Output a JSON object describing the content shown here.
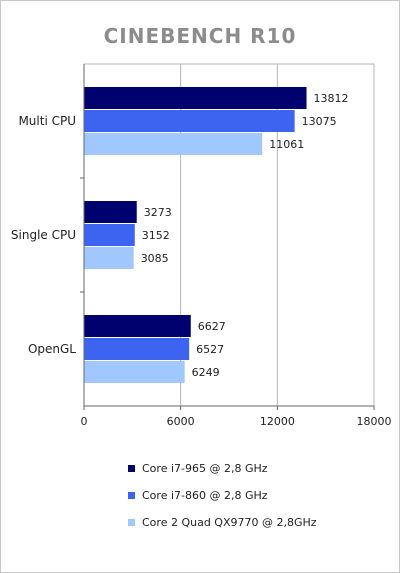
{
  "chart_data": {
    "type": "bar",
    "orientation": "horizontal",
    "title": "CINEBENCH R10",
    "categories": [
      "Multi CPU",
      "Single CPU",
      "OpenGL"
    ],
    "series": [
      {
        "name": "Core i7-965 @ 2,8 GHz",
        "color": "#00006e",
        "values": [
          13812,
          3273,
          6627
        ]
      },
      {
        "name": "Core i7-860 @ 2,8 GHz",
        "color": "#3c64f0",
        "values": [
          13075,
          3152,
          6527
        ]
      },
      {
        "name": "Core 2 Quad QX9770 @ 2,8GHz",
        "color": "#a0c8ff",
        "values": [
          11061,
          3085,
          6249
        ]
      }
    ],
    "xlim": [
      0,
      18000
    ],
    "xticks": [
      "0",
      "6000",
      "12000",
      "18000"
    ],
    "grid": true,
    "legend_position": "bottom"
  }
}
